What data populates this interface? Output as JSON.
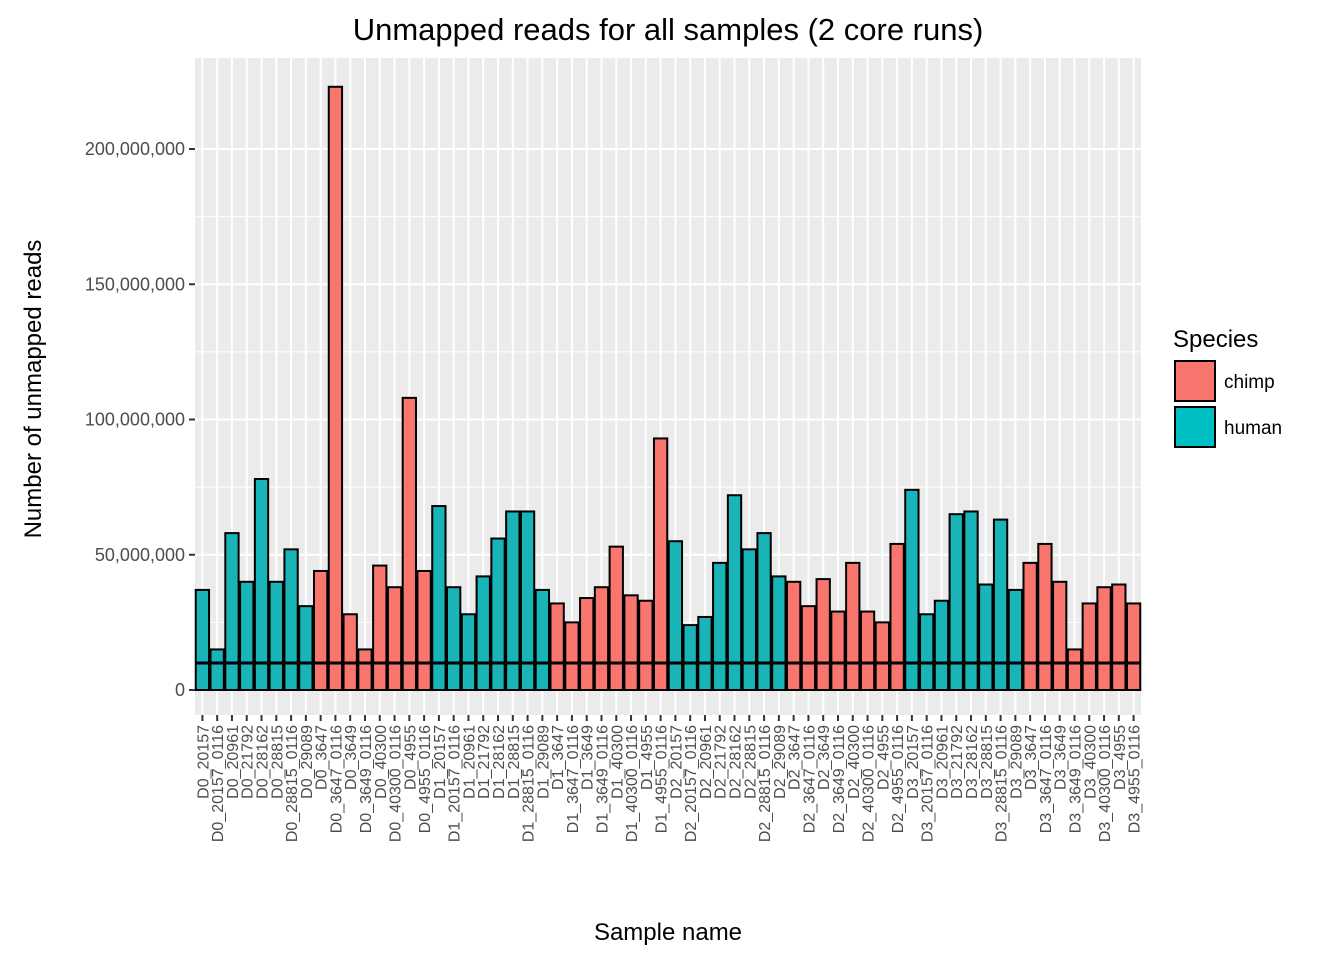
{
  "chart_data": {
    "type": "bar",
    "title": "Unmapped reads for all samples (2 core runs)",
    "xlabel": "Sample name",
    "ylabel": "Number of unmapped reads",
    "ylim": [
      0,
      225000000
    ],
    "y_ticks": [
      0,
      50000000,
      100000000,
      150000000,
      200000000
    ],
    "y_tick_labels": [
      "0",
      "50,000,000",
      "100,000,000",
      "150,000,000",
      "200,000,000"
    ],
    "reference_line": 10000000,
    "grid": true,
    "legend": {
      "title": "Species",
      "position": "right",
      "entries": [
        {
          "label": "chimp",
          "color": "#F8766D"
        },
        {
          "label": "human",
          "color": "#00BFC4"
        }
      ]
    },
    "colors": {
      "chimp": "#F8766D",
      "human": "#19B4B8",
      "panel": "#EBEBEB"
    },
    "categories": [
      "D0_20157",
      "D0_20157_0116",
      "D0_20961",
      "D0_21792",
      "D0_28162",
      "D0_28815",
      "D0_28815_0116",
      "D0_29089",
      "D0_3647",
      "D0_3647_0116",
      "D0_3649",
      "D0_3649_0116",
      "D0_40300",
      "D0_40300_0116",
      "D0_4955",
      "D0_4955_0116",
      "D1_20157",
      "D1_20157_0116",
      "D1_20961",
      "D1_21792",
      "D1_28162",
      "D1_28815",
      "D1_28815_0116",
      "D1_29089",
      "D1_3647",
      "D1_3647_0116",
      "D1_3649",
      "D1_3649_0116",
      "D1_40300",
      "D1_40300_0116",
      "D1_4955",
      "D1_4955_0116",
      "D2_20157",
      "D2_20157_0116",
      "D2_20961",
      "D2_21792",
      "D2_28162",
      "D2_28815",
      "D2_28815_0116",
      "D2_29089",
      "D2_3647",
      "D2_3647_0116",
      "D2_3649",
      "D2_3649_0116",
      "D2_40300",
      "D2_40300_0116",
      "D2_4955",
      "D2_4955_0116",
      "D3_20157",
      "D3_20157_0116",
      "D3_20961",
      "D3_21792",
      "D3_28162",
      "D3_28815",
      "D3_28815_0116",
      "D3_29089",
      "D3_3647",
      "D3_3647_0116",
      "D3_3649",
      "D3_3649_0116",
      "D3_40300",
      "D3_40300_0116",
      "D3_4955",
      "D3_4955_0116"
    ],
    "values": [
      37000000,
      15000000,
      58000000,
      40000000,
      78000000,
      40000000,
      52000000,
      31000000,
      44000000,
      223000000,
      28000000,
      15000000,
      46000000,
      38000000,
      108000000,
      44000000,
      68000000,
      38000000,
      28000000,
      42000000,
      56000000,
      66000000,
      66000000,
      37000000,
      32000000,
      25000000,
      34000000,
      38000000,
      53000000,
      35000000,
      33000000,
      93000000,
      55000000,
      24000000,
      27000000,
      47000000,
      72000000,
      52000000,
      58000000,
      42000000,
      40000000,
      31000000,
      41000000,
      29000000,
      47000000,
      29000000,
      25000000,
      54000000,
      74000000,
      28000000,
      33000000,
      65000000,
      66000000,
      39000000,
      63000000,
      37000000,
      47000000,
      54000000,
      40000000,
      15000000,
      32000000,
      38000000,
      39000000,
      32000000
    ],
    "species": [
      "human",
      "human",
      "human",
      "human",
      "human",
      "human",
      "human",
      "human",
      "chimp",
      "chimp",
      "chimp",
      "chimp",
      "chimp",
      "chimp",
      "chimp",
      "chimp",
      "human",
      "human",
      "human",
      "human",
      "human",
      "human",
      "human",
      "human",
      "chimp",
      "chimp",
      "chimp",
      "chimp",
      "chimp",
      "chimp",
      "chimp",
      "chimp",
      "human",
      "human",
      "human",
      "human",
      "human",
      "human",
      "human",
      "human",
      "chimp",
      "chimp",
      "chimp",
      "chimp",
      "chimp",
      "chimp",
      "chimp",
      "chimp",
      "human",
      "human",
      "human",
      "human",
      "human",
      "human",
      "human",
      "human",
      "chimp",
      "chimp",
      "chimp",
      "chimp",
      "chimp",
      "chimp",
      "chimp",
      "chimp"
    ]
  }
}
